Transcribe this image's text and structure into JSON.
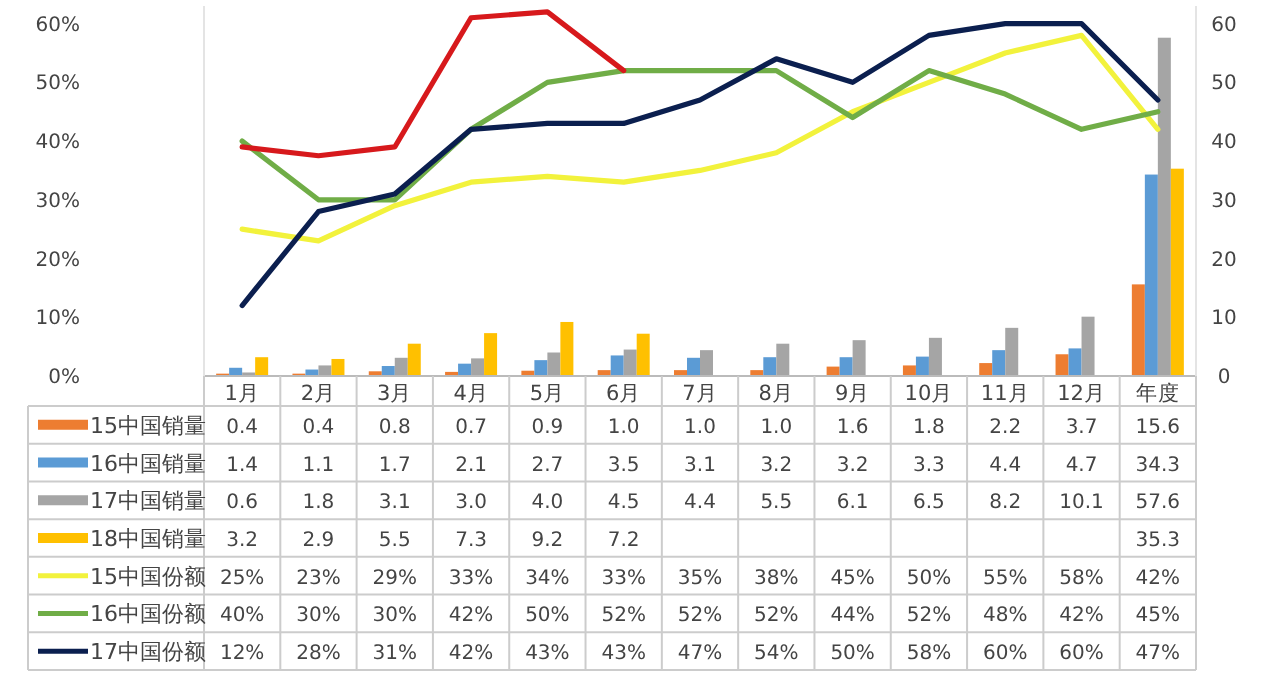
{
  "chart_data": {
    "type": "bar",
    "categories": [
      "1月",
      "2月",
      "3月",
      "4月",
      "5月",
      "6月",
      "7月",
      "8月",
      "9月",
      "10月",
      "11月",
      "12月",
      "年度"
    ],
    "ylim": [
      0,
      63
    ],
    "yticks": [
      {
        "value": 0,
        "label": "0%"
      },
      {
        "value": 10,
        "label": "10%"
      },
      {
        "value": 20,
        "label": "20%"
      },
      {
        "value": 30,
        "label": "30%"
      },
      {
        "value": 40,
        "label": "40%"
      },
      {
        "value": 50,
        "label": "50%"
      },
      {
        "value": 60,
        "label": "60%"
      }
    ],
    "y2lim": [
      0,
      63
    ],
    "y2ticks": [
      0,
      10,
      20,
      30,
      40,
      50,
      60
    ],
    "grid": false,
    "legend": "left",
    "series": [
      {
        "name": "15中国销量",
        "color": "#ed7d31",
        "values": [
          0.4,
          0.4,
          0.8,
          0.7,
          0.9,
          1.0,
          1.0,
          1.0,
          1.6,
          1.8,
          2.2,
          3.7,
          15.6
        ],
        "value_labels": [
          "0.4",
          "0.4",
          "0.8",
          "0.7",
          "0.9",
          "1.0",
          "1.0",
          "1.0",
          "1.6",
          "1.8",
          "2.2",
          "3.7",
          "15.6"
        ]
      },
      {
        "name": "16中国销量",
        "color": "#5b9bd5",
        "values": [
          1.4,
          1.1,
          1.7,
          2.1,
          2.7,
          3.5,
          3.1,
          3.2,
          3.2,
          3.3,
          4.4,
          4.7,
          34.3
        ],
        "value_labels": [
          "1.4",
          "1.1",
          "1.7",
          "2.1",
          "2.7",
          "3.5",
          "3.1",
          "3.2",
          "3.2",
          "3.3",
          "4.4",
          "4.7",
          "34.3"
        ]
      },
      {
        "name": "17中国销量",
        "color": "#a5a5a5",
        "values": [
          0.6,
          1.8,
          3.1,
          3.0,
          4.0,
          4.5,
          4.4,
          5.5,
          6.1,
          6.5,
          8.2,
          10.1,
          57.6
        ],
        "value_labels": [
          "0.6",
          "1.8",
          "3.1",
          "3.0",
          "4.0",
          "4.5",
          "4.4",
          "5.5",
          "6.1",
          "6.5",
          "8.2",
          "10.1",
          "57.6"
        ]
      },
      {
        "name": "18中国销量",
        "color": "#ffc000",
        "values": [
          3.2,
          2.9,
          5.5,
          7.3,
          9.2,
          7.2,
          null,
          null,
          null,
          null,
          null,
          null,
          35.3
        ],
        "value_labels": [
          "3.2",
          "2.9",
          "5.5",
          "7.3",
          "9.2",
          "7.2",
          null,
          null,
          null,
          null,
          null,
          null,
          "35.3"
        ]
      },
      {
        "name": "15中国份额",
        "type": "line",
        "color": "#f2f23c",
        "values": [
          25,
          23,
          29,
          33,
          34,
          33,
          35,
          38,
          45,
          50,
          55,
          58,
          42
        ],
        "value_labels": [
          "25%",
          "23%",
          "29%",
          "33%",
          "34%",
          "33%",
          "35%",
          "38%",
          "45%",
          "50%",
          "55%",
          "58%",
          "42%"
        ]
      },
      {
        "name": "16中国份额",
        "type": "line",
        "color": "#70ad47",
        "values": [
          40,
          30,
          30,
          42,
          50,
          52,
          52,
          52,
          44,
          52,
          48,
          42,
          45
        ],
        "value_labels": [
          "40%",
          "30%",
          "30%",
          "42%",
          "50%",
          "52%",
          "52%",
          "52%",
          "44%",
          "52%",
          "48%",
          "42%",
          "45%"
        ]
      },
      {
        "name": "17中国份额",
        "type": "line",
        "color": "#0b1f4f",
        "values": [
          12,
          28,
          31,
          42,
          43,
          43,
          47,
          54,
          50,
          58,
          60,
          60,
          47
        ],
        "value_labels": [
          "12%",
          "28%",
          "31%",
          "42%",
          "43%",
          "43%",
          "47%",
          "54%",
          "50%",
          "58%",
          "60%",
          "60%",
          "47%"
        ]
      },
      {
        "type": "line",
        "color": "#d7191c",
        "values": [
          39,
          37.5,
          39,
          61,
          62,
          52,
          null,
          null,
          null,
          null,
          null,
          null,
          null
        ]
      }
    ]
  }
}
